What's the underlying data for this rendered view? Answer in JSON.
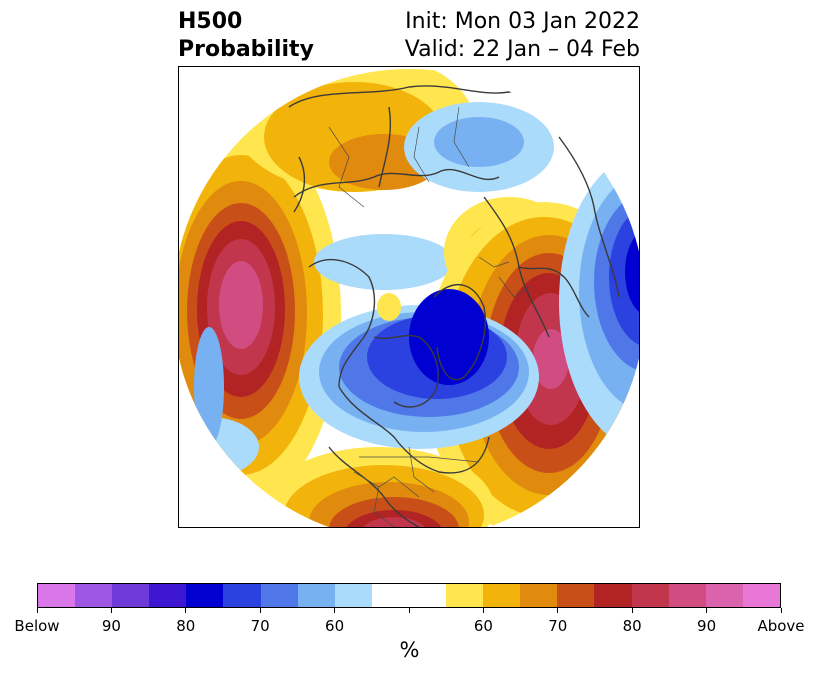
{
  "title": {
    "left_line1": "H500",
    "left_line2": "Probability",
    "right_line1": "Init: Mon 03 Jan 2022",
    "right_line2": "Valid: 22 Jan – 04 Feb"
  },
  "map": {
    "projection": "north-polar-stereographic",
    "features": [
      "coastlines",
      "country-borders",
      "us-state-borders"
    ]
  },
  "colorbar": {
    "colors": [
      "#d977e8",
      "#9e57e3",
      "#6e3ad9",
      "#3d17d2",
      "#0000d1",
      "#2b41e0",
      "#4f77e8",
      "#78b1f2",
      "#abdbfb",
      "#ffffff",
      "#ffffff",
      "#ffe64f",
      "#f2b40a",
      "#e08a0e",
      "#c94f18",
      "#b22323",
      "#c2364d",
      "#d04c81",
      "#db63ad",
      "#e977d8"
    ],
    "tick_labels": [
      "Below",
      "90",
      "80",
      "70",
      "60",
      "",
      "60",
      "70",
      "80",
      "90",
      "Above"
    ],
    "unit_label": "%"
  }
}
